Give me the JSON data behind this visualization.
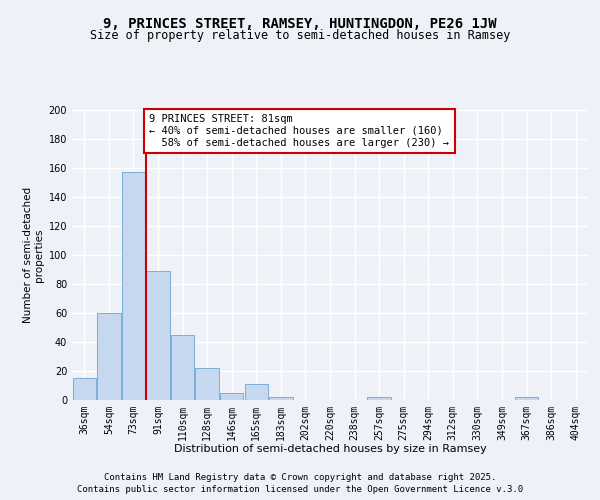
{
  "title1": "9, PRINCES STREET, RAMSEY, HUNTINGDON, PE26 1JW",
  "title2": "Size of property relative to semi-detached houses in Ramsey",
  "xlabel": "Distribution of semi-detached houses by size in Ramsey",
  "ylabel": "Number of semi-detached\nproperties",
  "categories": [
    "36sqm",
    "54sqm",
    "73sqm",
    "91sqm",
    "110sqm",
    "128sqm",
    "146sqm",
    "165sqm",
    "183sqm",
    "202sqm",
    "220sqm",
    "238sqm",
    "257sqm",
    "275sqm",
    "294sqm",
    "312sqm",
    "330sqm",
    "349sqm",
    "367sqm",
    "386sqm",
    "404sqm"
  ],
  "values": [
    15,
    60,
    157,
    89,
    45,
    22,
    5,
    11,
    2,
    0,
    0,
    0,
    2,
    0,
    0,
    0,
    0,
    0,
    2,
    0,
    0
  ],
  "bar_color": "#c5d8f0",
  "bar_edge_color": "#7bafd4",
  "property_label": "9 PRINCES STREET: 81sqm",
  "pct_smaller": 40,
  "pct_larger": 58,
  "count_smaller": 160,
  "count_larger": 230,
  "redline_bin_index": 2,
  "annotation_box_color": "#ffffff",
  "annotation_box_edge": "#cc0000",
  "redline_color": "#cc0000",
  "footer1": "Contains HM Land Registry data © Crown copyright and database right 2025.",
  "footer2": "Contains public sector information licensed under the Open Government Licence v.3.0",
  "ylim": [
    0,
    200
  ],
  "yticks": [
    0,
    20,
    40,
    60,
    80,
    100,
    120,
    140,
    160,
    180,
    200
  ],
  "background_color": "#eef2f8",
  "grid_color": "#ffffff",
  "title1_fontsize": 10,
  "title2_fontsize": 8.5,
  "xlabel_fontsize": 8,
  "ylabel_fontsize": 7.5,
  "tick_fontsize": 7,
  "annotation_fontsize": 7.5,
  "footer_fontsize": 6.5
}
